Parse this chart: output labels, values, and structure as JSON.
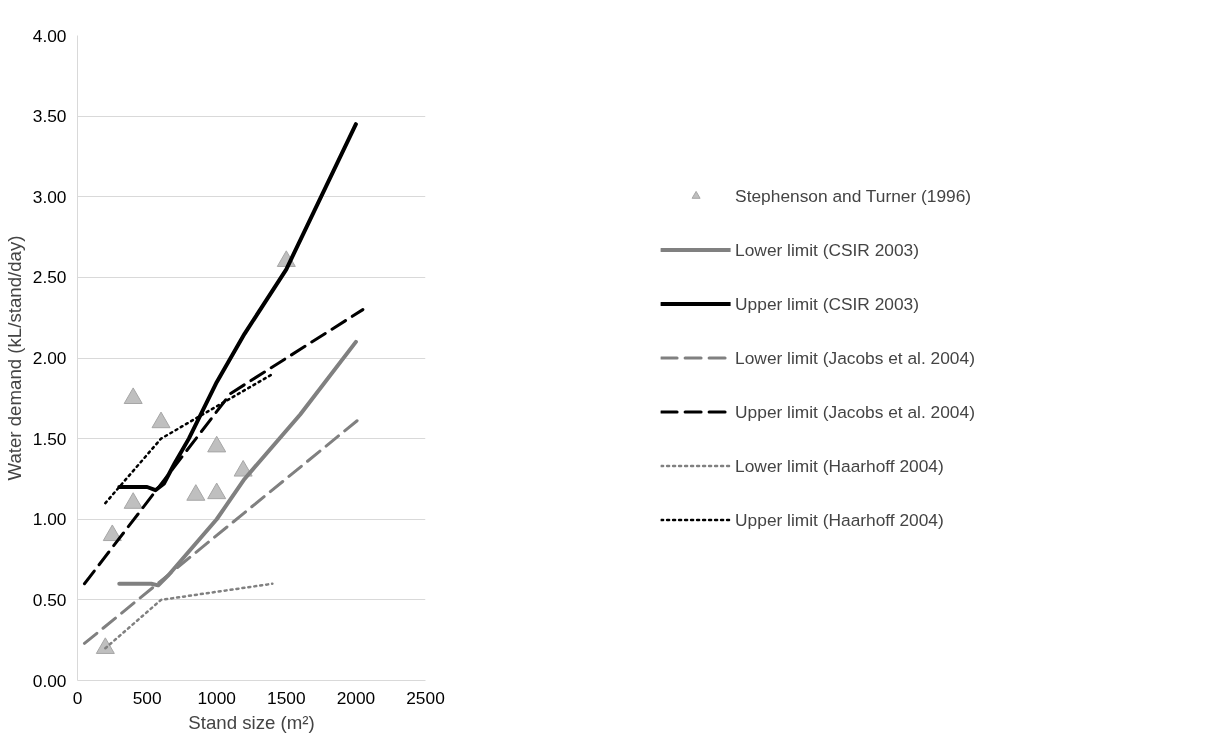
{
  "chart_data": {
    "type": "line",
    "xlabel": "Stand size (m²)",
    "ylabel": "Water demand (kL/stand/day)",
    "xlim": [
      0,
      2500
    ],
    "xticks": [
      0,
      500,
      1000,
      1500,
      2000,
      2500
    ],
    "ylim": [
      0,
      4
    ],
    "yticks": [
      {
        "value": 0,
        "label": "0.00"
      },
      {
        "value": 0.5,
        "label": "0.50"
      },
      {
        "value": 1,
        "label": "1.00"
      },
      {
        "value": 1.5,
        "label": "1.50"
      },
      {
        "value": 2,
        "label": "2.00"
      },
      {
        "value": 2.5,
        "label": "2.50"
      },
      {
        "value": 3,
        "label": "3.00"
      },
      {
        "value": 3.5,
        "label": "3.50"
      },
      {
        "value": 4,
        "label": "4.00"
      }
    ],
    "grid": "y",
    "legend": "right",
    "series": [
      {
        "name": "Stephenson and Turner (1996)",
        "type": "scatter",
        "marker": "triangle",
        "color": "#bfbfbf",
        "x": [
          200,
          250,
          400,
          400,
          600,
          850,
          1000,
          1000,
          1190,
          1500
        ],
        "values": [
          0.2,
          0.9,
          1.75,
          1.1,
          1.6,
          1.15,
          1.45,
          1.16,
          1.3,
          2.6
        ]
      },
      {
        "name": "Lower limit (CSIR 2003)",
        "marker": "none",
        "line_style": "solid",
        "color": "#808080",
        "x": [
          300,
          530,
          580,
          650,
          800,
          1000,
          1200,
          1600,
          2000
        ],
        "values": [
          0.6,
          0.6,
          0.59,
          0.65,
          0.8,
          1.0,
          1.25,
          1.65,
          2.1
        ]
      },
      {
        "name": "Upper limit (CSIR 2003)",
        "marker": "none",
        "line_style": "solid",
        "color": "#000000",
        "x": [
          300,
          500,
          560,
          620,
          700,
          800,
          1000,
          1200,
          1500,
          2000
        ],
        "values": [
          1.2,
          1.2,
          1.18,
          1.22,
          1.35,
          1.5,
          1.85,
          2.15,
          2.55,
          3.45
        ]
      },
      {
        "name": "Lower limit (Jacobs et al. 2004)",
        "marker": "none",
        "line_style": "dashed",
        "color": "#808080",
        "x": [
          50,
          2050
        ],
        "values": [
          0.23,
          1.64
        ]
      },
      {
        "name": "Upper limit (Jacobs et al. 2004)",
        "marker": "none",
        "line_style": "dashed",
        "color": "#000000",
        "x": [
          50,
          1100,
          2050
        ],
        "values": [
          0.6,
          1.78,
          2.3
        ]
      },
      {
        "name": "Lower limit (Haarhoff 2004)",
        "marker": "none",
        "line_style": "dotted",
        "color": "#808080",
        "x": [
          200,
          600,
          1400
        ],
        "values": [
          0.2,
          0.5,
          0.6
        ]
      },
      {
        "name": "Upper limit (Haarhoff 2004)",
        "marker": "none",
        "line_style": "dotted",
        "color": "#000000",
        "x": [
          200,
          600,
          1000,
          1400
        ],
        "values": [
          1.1,
          1.5,
          1.7,
          1.9
        ]
      }
    ]
  }
}
